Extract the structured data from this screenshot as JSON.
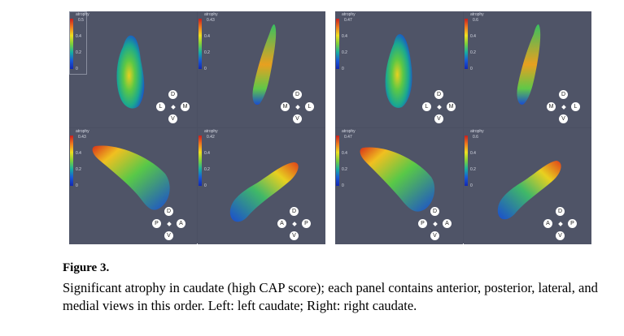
{
  "colormap": {
    "title": "atrophy",
    "ticks": [
      "0.4",
      "0.2",
      "0"
    ],
    "colors": [
      "#c81e1e",
      "#f07a1e",
      "#f0e020",
      "#7fd03a",
      "#18b0a0",
      "#1858d8",
      "#1428b0"
    ]
  },
  "left_block": {
    "panels": [
      {
        "max": "0.5",
        "compass": {
          "top": "D",
          "left": "L",
          "right": "M",
          "bottom": "V"
        }
      },
      {
        "max": "0.43",
        "compass": {
          "top": "D",
          "left": "M",
          "right": "L",
          "bottom": "V"
        }
      },
      {
        "max": "0.43",
        "compass": {
          "top": "D",
          "left": "P",
          "right": "A",
          "bottom": "V"
        }
      },
      {
        "max": "0.42",
        "compass": {
          "top": "D",
          "left": "A",
          "right": "P",
          "bottom": "V"
        }
      }
    ]
  },
  "right_block": {
    "panels": [
      {
        "max": "0.47",
        "compass": {
          "top": "D",
          "left": "L",
          "right": "M",
          "bottom": "V"
        }
      },
      {
        "max": "0.6",
        "compass": {
          "top": "D",
          "left": "M",
          "right": "L",
          "bottom": "V"
        }
      },
      {
        "max": "0.47",
        "compass": {
          "top": "D",
          "left": "P",
          "right": "A",
          "bottom": "V"
        }
      },
      {
        "max": "0.6",
        "compass": {
          "top": "D",
          "left": "A",
          "right": "P",
          "bottom": "V"
        }
      }
    ]
  },
  "caption": {
    "title": "Figure 3.",
    "body": "Significant atrophy in caudate (high CAP score); each panel contains anterior, posterior, lateral, and medial views in this order. Left: left caudate; Right: right caudate."
  }
}
